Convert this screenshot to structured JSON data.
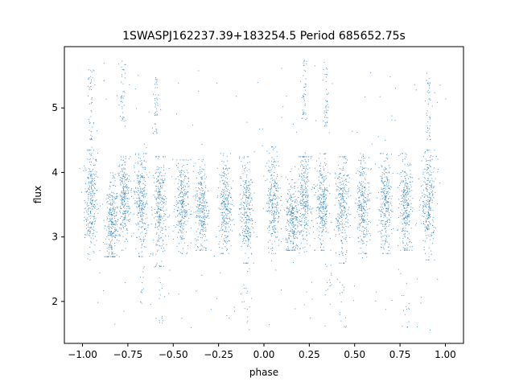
{
  "chart_data": {
    "type": "scatter",
    "title": "1SWASPJ162237.39+183254.5 Period 685652.75s",
    "xlabel": "phase",
    "ylabel": "flux",
    "xlim": [
      -1.1,
      1.1
    ],
    "ylim": [
      1.35,
      5.95
    ],
    "xticks": [
      -1.0,
      -0.75,
      -0.5,
      -0.25,
      0.0,
      0.25,
      0.5,
      0.75,
      1.0
    ],
    "xtick_labels": [
      "−1.00",
      "−0.75",
      "−0.50",
      "−0.25",
      "0.00",
      "0.25",
      "0.50",
      "0.75",
      "1.00"
    ],
    "yticks": [
      2,
      3,
      4,
      5
    ],
    "ytick_labels": [
      "2",
      "3",
      "4",
      "5"
    ],
    "grid": false,
    "marker_color": "#1f77b4",
    "series": [
      {
        "clusters": [
          {
            "x": -0.955,
            "low": 2.65,
            "high": 4.35,
            "center": 3.6
          },
          {
            "x": -0.84,
            "low": 2.7,
            "high": 4.0,
            "center": 3.2
          },
          {
            "x": -0.775,
            "low": 2.8,
            "high": 4.25,
            "center": 3.6
          },
          {
            "x": -0.68,
            "low": 2.7,
            "high": 4.3,
            "center": 3.55
          },
          {
            "x": -0.575,
            "low": 2.55,
            "high": 4.25,
            "center": 3.45
          },
          {
            "x": -0.455,
            "low": 2.75,
            "high": 4.2,
            "center": 3.5
          },
          {
            "x": -0.345,
            "low": 2.8,
            "high": 4.3,
            "center": 3.45
          },
          {
            "x": -0.215,
            "low": 2.75,
            "high": 4.3,
            "center": 3.5
          },
          {
            "x": -0.1,
            "low": 2.6,
            "high": 4.25,
            "center": 3.4
          },
          {
            "x": 0.05,
            "low": 2.75,
            "high": 4.4,
            "center": 3.6
          },
          {
            "x": 0.155,
            "low": 2.8,
            "high": 4.1,
            "center": 3.25
          },
          {
            "x": 0.22,
            "low": 2.75,
            "high": 4.25,
            "center": 3.6
          },
          {
            "x": 0.32,
            "low": 2.8,
            "high": 4.3,
            "center": 3.5
          },
          {
            "x": 0.43,
            "low": 2.6,
            "high": 4.25,
            "center": 3.45
          },
          {
            "x": 0.545,
            "low": 2.75,
            "high": 4.3,
            "center": 3.55
          },
          {
            "x": 0.665,
            "low": 2.75,
            "high": 4.3,
            "center": 3.5
          },
          {
            "x": 0.78,
            "low": 2.8,
            "high": 4.3,
            "center": 3.5
          },
          {
            "x": 0.905,
            "low": 2.65,
            "high": 4.35,
            "center": 3.55
          }
        ],
        "spikes": [
          {
            "x": -0.78,
            "low": 4.8,
            "high": 5.75
          },
          {
            "x": -0.6,
            "low": 4.6,
            "high": 5.5
          },
          {
            "x": 0.22,
            "low": 4.8,
            "high": 5.75
          },
          {
            "x": 0.34,
            "low": 4.6,
            "high": 5.75
          },
          {
            "x": -0.955,
            "low": 4.5,
            "high": 5.6
          },
          {
            "x": 0.905,
            "low": 4.5,
            "high": 5.6
          }
        ],
        "dips": [
          {
            "x": -0.68,
            "low": 1.95,
            "high": 2.6
          },
          {
            "x": 0.36,
            "low": 1.95,
            "high": 2.6
          },
          {
            "x": -0.57,
            "low": 1.6,
            "high": 2.4
          },
          {
            "x": 0.43,
            "low": 1.6,
            "high": 2.4
          },
          {
            "x": -0.1,
            "low": 1.55,
            "high": 2.3
          },
          {
            "x": 0.78,
            "low": 1.55,
            "high": 2.3
          }
        ],
        "scatter_range": [
          1.55,
          5.75
        ]
      }
    ]
  }
}
